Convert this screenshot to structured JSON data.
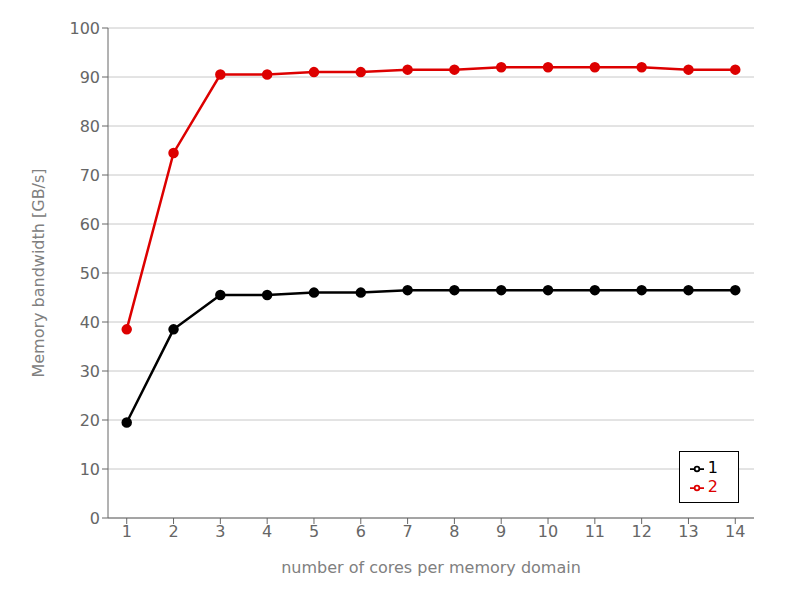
{
  "chart_data": {
    "type": "line",
    "xlabel": "number of cores per memory domain",
    "ylabel": "Memory bandwidth [GB/s]",
    "x": [
      1,
      2,
      3,
      4,
      5,
      6,
      7,
      8,
      9,
      10,
      11,
      12,
      13,
      14
    ],
    "series": [
      {
        "name": "1",
        "color": "#000000",
        "marker": "circle",
        "values": [
          19.5,
          38.5,
          45.5,
          45.5,
          46.0,
          46.0,
          46.5,
          46.5,
          46.5,
          46.5,
          46.5,
          46.5,
          46.5,
          46.5
        ]
      },
      {
        "name": "2",
        "color": "#dd0000",
        "marker": "circle",
        "values": [
          38.5,
          74.5,
          90.5,
          90.5,
          91.0,
          91.0,
          91.5,
          91.5,
          92.0,
          92.0,
          92.0,
          92.0,
          91.5,
          91.5
        ]
      }
    ],
    "xlim": [
      0.6,
      14.4
    ],
    "xticks": [
      1,
      2,
      3,
      4,
      5,
      6,
      7,
      8,
      9,
      10,
      11,
      12,
      13,
      14
    ],
    "ylim": [
      0,
      100
    ],
    "yticks": [
      0,
      10,
      20,
      30,
      40,
      50,
      60,
      70,
      80,
      90,
      100
    ],
    "grid": "y",
    "legend": "lower right"
  }
}
